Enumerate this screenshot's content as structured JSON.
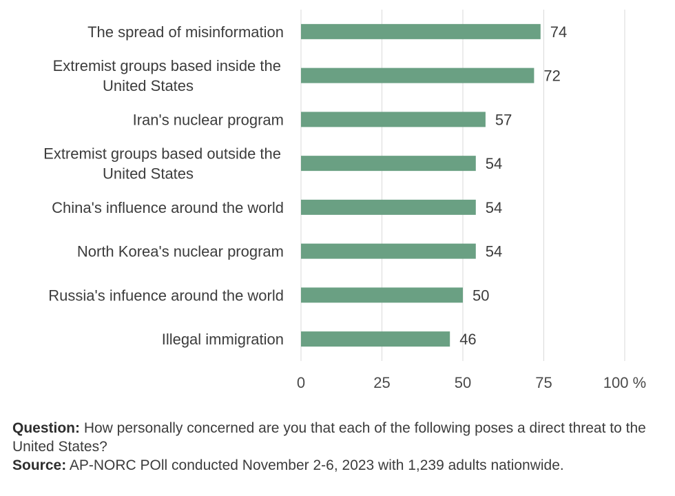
{
  "chart_data": {
    "type": "bar",
    "orientation": "horizontal",
    "categories": [
      [
        "The spread of misinformation"
      ],
      [
        "Extremist groups based inside the",
        "United States"
      ],
      [
        "Iran's nuclear program"
      ],
      [
        "Extremist groups based outside the",
        "United States"
      ],
      [
        "China's influence around the world"
      ],
      [
        "North Korea's nuclear program"
      ],
      [
        "Russia's infuence around the world"
      ],
      [
        "Illegal immigration"
      ]
    ],
    "values": [
      74,
      72,
      57,
      54,
      54,
      54,
      50,
      46
    ],
    "xlim": [
      0,
      100
    ],
    "xticks": [
      0,
      25,
      50,
      75,
      100
    ],
    "xtick_labels": [
      "0",
      "25",
      "50",
      "75",
      "100 %"
    ],
    "grid": true,
    "bar_color": "#6aa083"
  },
  "notes": {
    "question_label": "Question:",
    "question_text": " How personally concerned are you that each of the following poses a direct threat to the United States?",
    "source_label": "Source:",
    "source_text": " AP-NORC POll conducted November 2-6, 2023 with 1,239 adults nationwide."
  }
}
